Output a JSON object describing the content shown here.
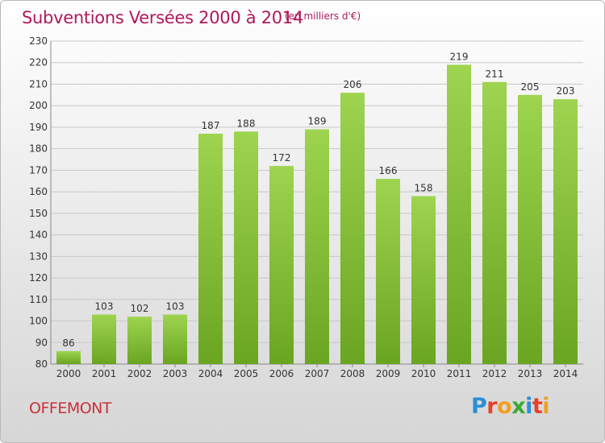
{
  "header": {
    "title": "Subventions Versées 2000 à 2014",
    "unit": "(en milliers d'€)"
  },
  "footer": {
    "commune": "OFFEMONT",
    "logo_text": "Proxiti"
  },
  "colors": {
    "title": "#b0185a",
    "commune": "#c9303c",
    "bar_light": "#9ed44f",
    "bar_dark": "#6aa522",
    "grid": "#c8c8c8"
  },
  "chart_data": {
    "type": "bar",
    "title": "Subventions Versées 2000 à 2014",
    "xlabel": "",
    "ylabel": "",
    "ylim": [
      80,
      230
    ],
    "yticks": [
      80,
      90,
      100,
      110,
      120,
      130,
      140,
      150,
      160,
      170,
      180,
      190,
      200,
      210,
      220,
      230
    ],
    "grid": true,
    "categories": [
      "2000",
      "2001",
      "2002",
      "2003",
      "2004",
      "2005",
      "2006",
      "2007",
      "2008",
      "2009",
      "2010",
      "2011",
      "2012",
      "2013",
      "2014"
    ],
    "values": [
      86,
      103,
      102,
      103,
      187,
      188,
      172,
      189,
      206,
      166,
      158,
      219,
      211,
      205,
      203
    ]
  }
}
